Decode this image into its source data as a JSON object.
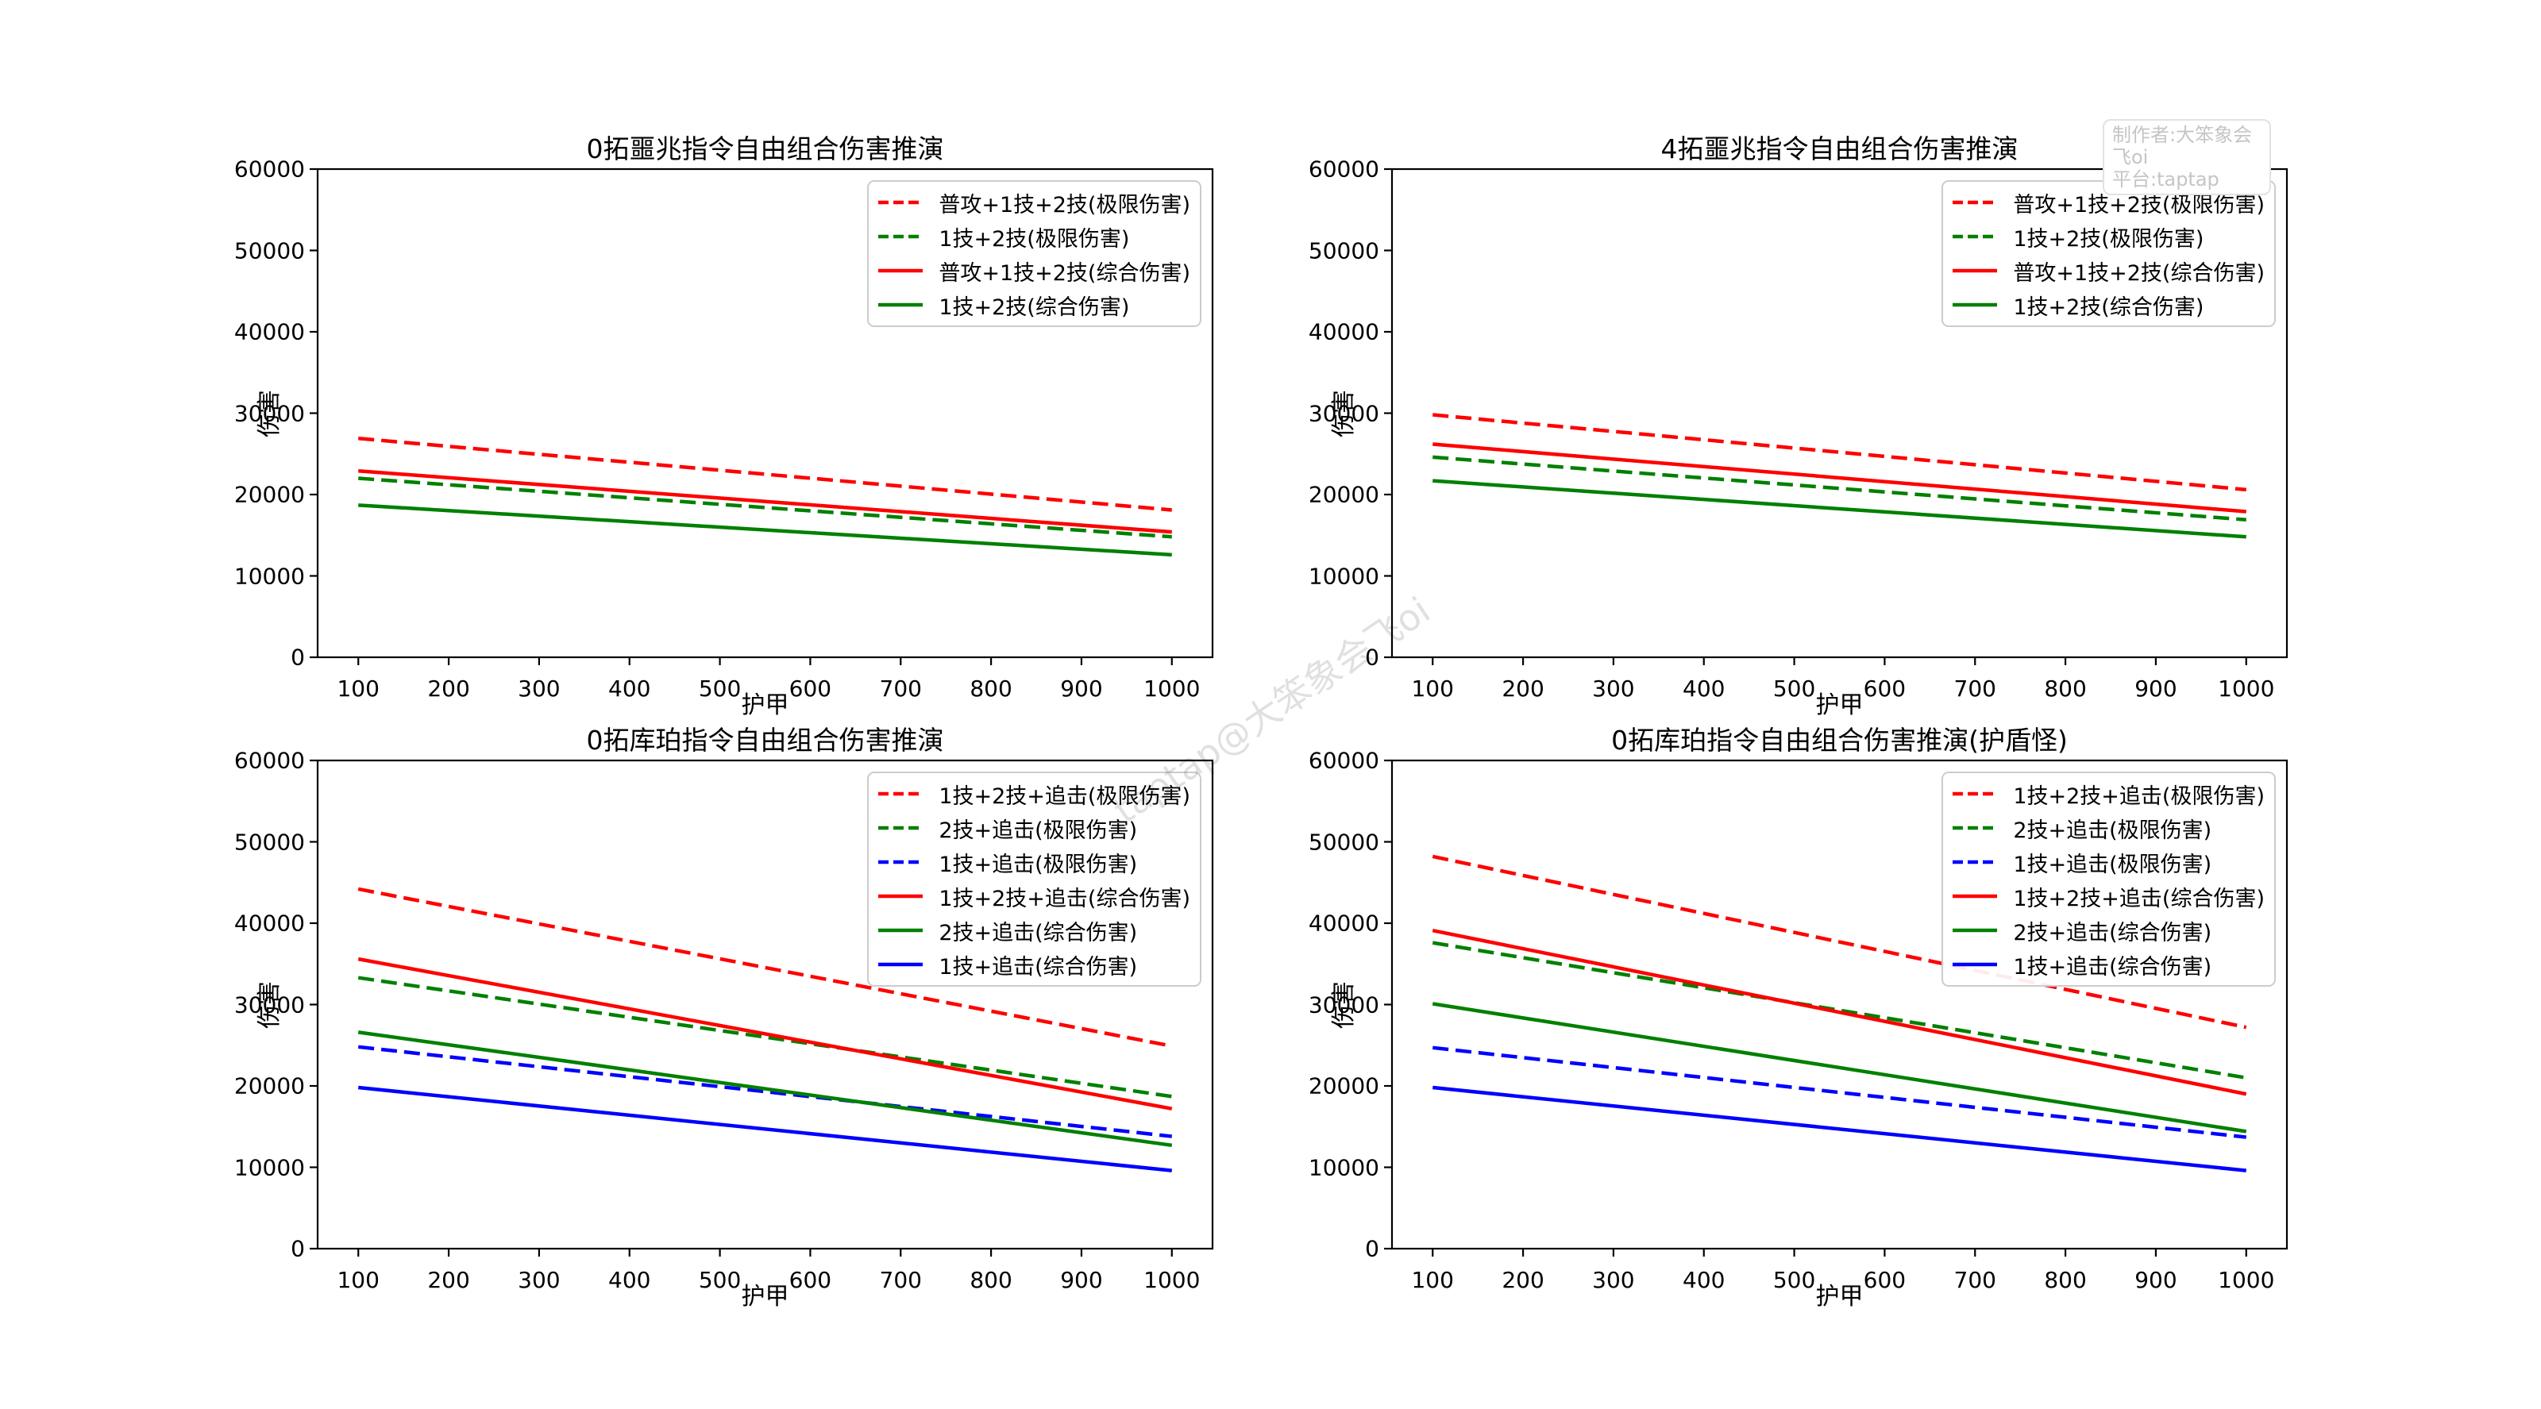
{
  "watermark_box": {
    "line1": "制作者:大笨象会飞oi",
    "line2": "平台:taptap"
  },
  "diagonal_watermark": "taptap@大笨象会飞oi",
  "colors": {
    "red": "#ff0000",
    "green": "#008000",
    "blue": "#0000ff"
  },
  "chart_data": [
    {
      "type": "line",
      "title": "0拓噩兆指令自由组合伤害推演",
      "xlabel": "护甲",
      "ylabel": "伤害",
      "x": [
        100,
        1000
      ],
      "xticks": [
        100,
        200,
        300,
        400,
        500,
        600,
        700,
        800,
        900,
        1000
      ],
      "yticks": [
        0,
        10000,
        20000,
        30000,
        40000,
        50000,
        60000
      ],
      "xlim": [
        55,
        1045
      ],
      "ylim": [
        0,
        60000
      ],
      "grid": false,
      "legend_position": "upper right",
      "series": [
        {
          "name": "普攻+1技+2技(极限伤害)",
          "color": "red",
          "style": "dashed",
          "values": [
            26900,
            18100
          ]
        },
        {
          "name": "1技+2技(极限伤害)",
          "color": "green",
          "style": "dashed",
          "values": [
            22000,
            14800
          ]
        },
        {
          "name": "普攻+1技+2技(综合伤害)",
          "color": "red",
          "style": "solid",
          "values": [
            22900,
            15400
          ]
        },
        {
          "name": "1技+2技(综合伤害)",
          "color": "green",
          "style": "solid",
          "values": [
            18700,
            12600
          ]
        }
      ]
    },
    {
      "type": "line",
      "title": "4拓噩兆指令自由组合伤害推演",
      "xlabel": "护甲",
      "ylabel": "伤害",
      "x": [
        100,
        1000
      ],
      "xticks": [
        100,
        200,
        300,
        400,
        500,
        600,
        700,
        800,
        900,
        1000
      ],
      "yticks": [
        0,
        10000,
        20000,
        30000,
        40000,
        50000,
        60000
      ],
      "xlim": [
        55,
        1045
      ],
      "ylim": [
        0,
        60000
      ],
      "grid": false,
      "legend_position": "upper right",
      "series": [
        {
          "name": "普攻+1技+2技(极限伤害)",
          "color": "red",
          "style": "dashed",
          "values": [
            29800,
            20600
          ]
        },
        {
          "name": "1技+2技(极限伤害)",
          "color": "green",
          "style": "dashed",
          "values": [
            24600,
            16900
          ]
        },
        {
          "name": "普攻+1技+2技(综合伤害)",
          "color": "red",
          "style": "solid",
          "values": [
            26200,
            17900
          ]
        },
        {
          "name": "1技+2技(综合伤害)",
          "color": "green",
          "style": "solid",
          "values": [
            21700,
            14800
          ]
        }
      ]
    },
    {
      "type": "line",
      "title": "0拓库珀指令自由组合伤害推演",
      "xlabel": "护甲",
      "ylabel": "伤害",
      "x": [
        100,
        1000
      ],
      "xticks": [
        100,
        200,
        300,
        400,
        500,
        600,
        700,
        800,
        900,
        1000
      ],
      "yticks": [
        0,
        10000,
        20000,
        30000,
        40000,
        50000,
        60000
      ],
      "xlim": [
        55,
        1045
      ],
      "ylim": [
        0,
        60000
      ],
      "grid": false,
      "legend_position": "upper right",
      "series": [
        {
          "name": "1技+2技+追击(极限伤害)",
          "color": "red",
          "style": "dashed",
          "values": [
            44200,
            24900
          ]
        },
        {
          "name": "2技+追击(极限伤害)",
          "color": "green",
          "style": "dashed",
          "values": [
            33300,
            18700
          ]
        },
        {
          "name": "1技+追击(极限伤害)",
          "color": "blue",
          "style": "dashed",
          "values": [
            24800,
            13800
          ]
        },
        {
          "name": "1技+2技+追击(综合伤害)",
          "color": "red",
          "style": "solid",
          "values": [
            35600,
            17200
          ]
        },
        {
          "name": "2技+追击(综合伤害)",
          "color": "green",
          "style": "solid",
          "values": [
            26600,
            12700
          ]
        },
        {
          "name": "1技+追击(综合伤害)",
          "color": "blue",
          "style": "solid",
          "values": [
            19800,
            9600
          ]
        }
      ]
    },
    {
      "type": "line",
      "title": "0拓库珀指令自由组合伤害推演(护盾怪)",
      "xlabel": "护甲",
      "ylabel": "伤害",
      "x": [
        100,
        1000
      ],
      "xticks": [
        100,
        200,
        300,
        400,
        500,
        600,
        700,
        800,
        900,
        1000
      ],
      "yticks": [
        0,
        10000,
        20000,
        30000,
        40000,
        50000,
        60000
      ],
      "xlim": [
        55,
        1045
      ],
      "ylim": [
        0,
        60000
      ],
      "grid": false,
      "legend_position": "upper right",
      "series": [
        {
          "name": "1技+2技+追击(极限伤害)",
          "color": "red",
          "style": "dashed",
          "values": [
            48200,
            27200
          ]
        },
        {
          "name": "2技+追击(极限伤害)",
          "color": "green",
          "style": "dashed",
          "values": [
            37600,
            21000
          ]
        },
        {
          "name": "1技+追击(极限伤害)",
          "color": "blue",
          "style": "dashed",
          "values": [
            24700,
            13700
          ]
        },
        {
          "name": "1技+2技+追击(综合伤害)",
          "color": "red",
          "style": "solid",
          "values": [
            39100,
            19000
          ]
        },
        {
          "name": "2技+追击(综合伤害)",
          "color": "green",
          "style": "solid",
          "values": [
            30100,
            14400
          ]
        },
        {
          "name": "1技+追击(综合伤害)",
          "color": "blue",
          "style": "solid",
          "values": [
            19800,
            9600
          ]
        }
      ]
    }
  ]
}
